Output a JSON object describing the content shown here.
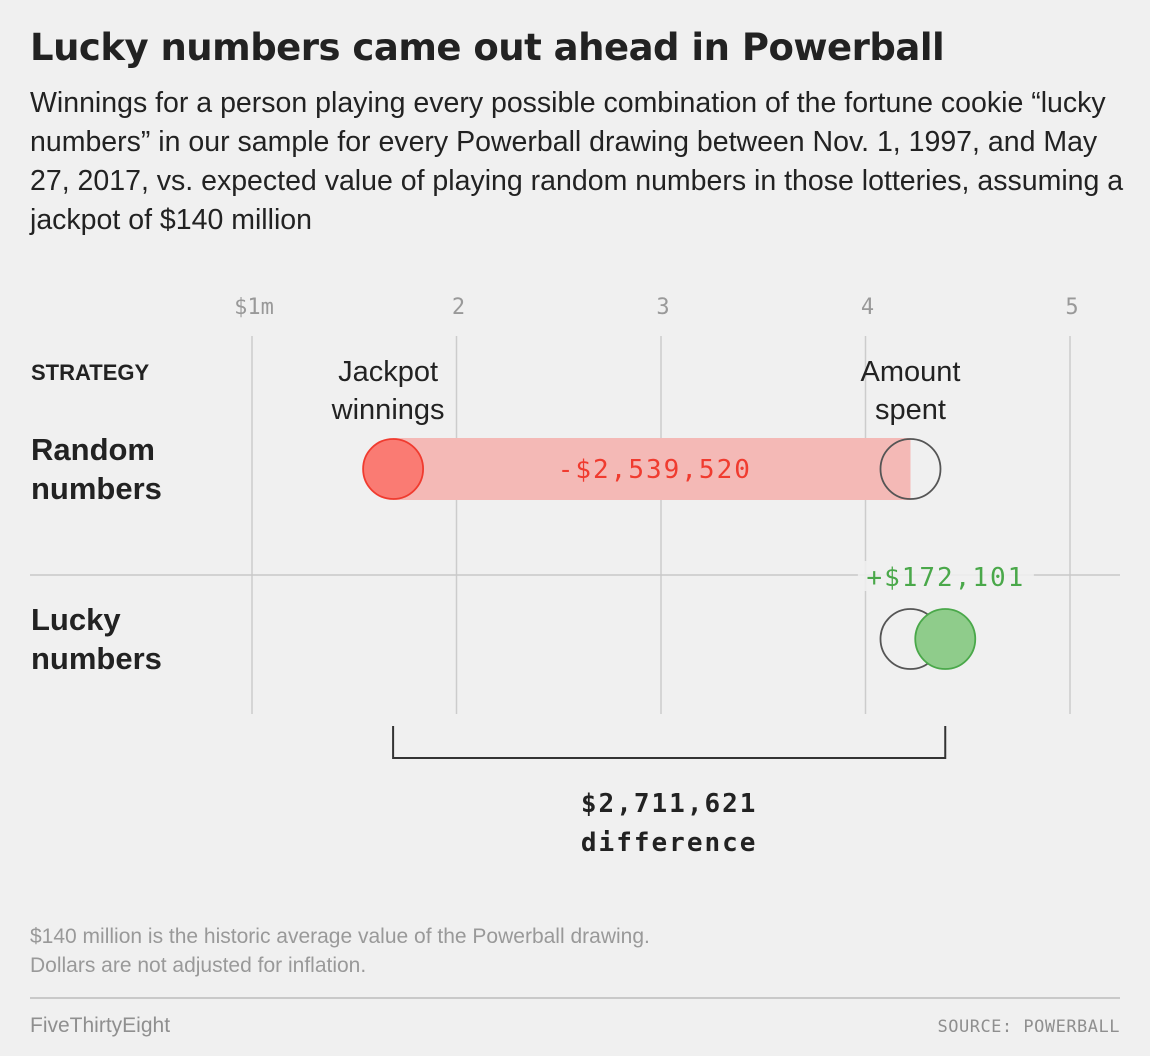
{
  "title": "Lucky numbers came out ahead in Powerball",
  "subtitle": "Winnings for a person playing every possible combination of the fortune cookie “lucky numbers” in our sample for every Powerball drawing between Nov. 1, 1997, and May 27, 2017, vs. expected value of playing random numbers in those lotteries, assuming a jackpot of $140 million",
  "notes": {
    "line1": "$140 million is the historic average value of the Powerball drawing.",
    "line2": "Dollars are not adjusted for inflation."
  },
  "footer": {
    "brand": "FiveThirtyEight",
    "source": "SOURCE: POWERBALL"
  },
  "colors": {
    "loss": "#f03b2f",
    "loss_fill": "#fa7b73",
    "loss_bar": "#f4b9b6",
    "gain": "#4aa84a",
    "gain_fill": "#8fcc8b",
    "spent_stroke": "#555555",
    "grid": "#cccccc",
    "axis_text": "#999999"
  },
  "chart_data": {
    "type": "dot-range",
    "x_unit": "millions of dollars",
    "xlim": [
      1,
      5
    ],
    "ticks": [
      1,
      2,
      3,
      4,
      5
    ],
    "tick_labels": [
      "$1m",
      "2",
      "3",
      "4",
      "5"
    ],
    "row_header": "STRATEGY",
    "legend": {
      "jackpot": "Jackpot winnings",
      "spent": "Amount spent"
    },
    "rows": [
      {
        "label": "Random numbers",
        "jackpot": 1.69,
        "spent": 4.22,
        "diff_label": "-$2,539,520",
        "outcome": "loss"
      },
      {
        "label": "Lucky numbers",
        "jackpot": 4.39,
        "spent": 4.22,
        "diff_label": "+$172,101",
        "outcome": "gain"
      }
    ],
    "difference": {
      "from": 1.69,
      "to": 4.39,
      "value_label": "$2,711,621",
      "label": "difference"
    }
  }
}
